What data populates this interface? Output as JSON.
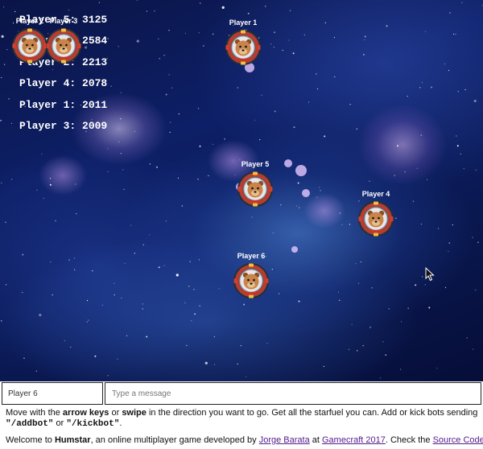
{
  "scoreboard": [
    {
      "name": "Player 5",
      "score": 3125,
      "text": "Player 5: 3125"
    },
    {
      "name": "Player 6",
      "score": 2584,
      "text": "Player 6: 2584"
    },
    {
      "name": "Player 2",
      "score": 2213,
      "text": "Player 2: 2213"
    },
    {
      "name": "Player 4",
      "score": 2078,
      "text": "Player 4: 2078"
    },
    {
      "name": "Player 1",
      "score": 2011,
      "text": "Player 1: 2011"
    },
    {
      "name": "Player 3",
      "score": 2009,
      "text": "Player 3: 2009"
    }
  ],
  "players": [
    {
      "label": "Player 1",
      "icon": "bear-astronaut-pod-icon"
    },
    {
      "label": "Player 2",
      "icon": "bear-astronaut-pod-icon"
    },
    {
      "label": "Player 3",
      "icon": "bear-astronaut-pod-icon"
    },
    {
      "label": "Player 4",
      "icon": "bear-astronaut-pod-icon"
    },
    {
      "label": "Player 5",
      "icon": "bear-astronaut-pod-icon"
    },
    {
      "label": "Player 6",
      "icon": "bear-astronaut-pod-icon"
    }
  ],
  "inputs": {
    "name_value": "Player 6",
    "message_placeholder": "Type a message"
  },
  "instructions": {
    "t1": "Move with the ",
    "b1": "arrow keys",
    "t2": " or ",
    "b2": "swipe",
    "t3": " in the direction you want to go. Get all the starfuel you can. Add or kick bots sending",
    "cmd1": "\"/addbot\"",
    "t4": " or ",
    "cmd2": "\"/kickbot\"",
    "t5": "."
  },
  "welcome": {
    "t1": "Welcome to ",
    "brand": "Humstar",
    "t2": ", an online multiplayer game developed by ",
    "author_link": "Jorge Barata",
    "t3": " at ",
    "event_link": "Gamecraft 2017",
    "t4": ". Check the ",
    "source_link": "Source Code"
  },
  "colors": {
    "space_dark": "#0a1446",
    "space_blue": "#2a5fd0",
    "nebula_pink": "#d6a8f0",
    "pod_red": "#c0392b",
    "bear_brown": "#c8844a",
    "link_purple": "#551a8b"
  }
}
